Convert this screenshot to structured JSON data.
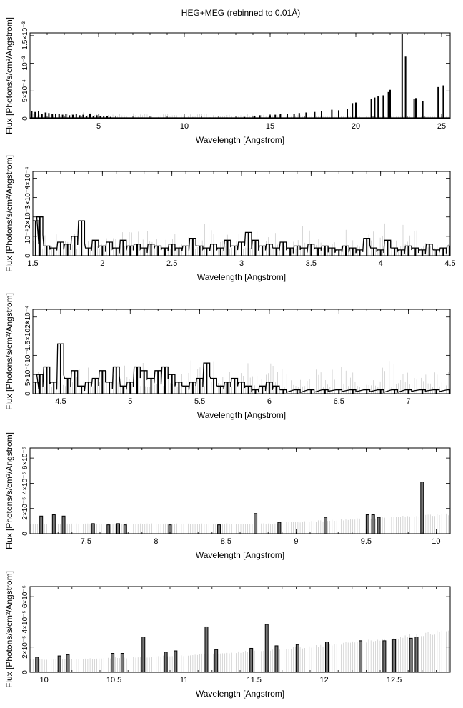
{
  "figure": {
    "title": "HEG+MEG (rebinned to 0.01Å)"
  },
  "chart_data": [
    {
      "type": "line",
      "title": "HEG+MEG (rebinned to 0.01Å)",
      "xlabel": "Wavelength [Angstrom]",
      "ylabel": "Flux [Photons/s/cm²/Angstrom]",
      "xlim": [
        1.0,
        25.5
      ],
      "ylim": [
        0,
        0.00155
      ],
      "xticks": [
        5,
        10,
        15,
        20,
        25
      ],
      "xtick_labels": [
        "5",
        "10",
        "15",
        "20",
        "25"
      ],
      "yticks": [
        0,
        0.0005,
        0.001,
        0.0015
      ],
      "ytick_labels": [
        "0",
        "5×10⁻⁴",
        "10⁻³",
        "1.5×10⁻³"
      ],
      "style": "spikes",
      "x": [
        1.1,
        1.3,
        1.5,
        1.7,
        1.9,
        2.1,
        2.3,
        2.5,
        2.7,
        2.9,
        3.1,
        3.3,
        3.5,
        3.7,
        3.9,
        4.1,
        4.3,
        4.5,
        4.7,
        4.9,
        5.1,
        5.3,
        5.5,
        5.7,
        6.5,
        7.5,
        8.5,
        9.5,
        10.5,
        11.5,
        12.5,
        13.5,
        14.1,
        14.4,
        15.0,
        15.3,
        15.6,
        16.0,
        16.4,
        16.7,
        17.1,
        17.6,
        18.0,
        18.6,
        19.0,
        19.5,
        19.8,
        20.0,
        20.9,
        21.1,
        21.3,
        21.6,
        21.9,
        22.0,
        22.7,
        22.9,
        23.4,
        23.5,
        23.9,
        24.8,
        25.1
      ],
      "y": [
        0.00014,
        0.00012,
        0.00013,
        9e-05,
        0.00011,
        0.0001,
        8e-05,
        9e-05,
        8e-05,
        7e-05,
        9e-05,
        6e-05,
        7e-05,
        8e-05,
        6e-05,
        7e-05,
        5e-05,
        9e-05,
        5e-05,
        6e-05,
        5e-05,
        4e-05,
        4e-05,
        3e-05,
        2e-05,
        2e-05,
        2e-05,
        2e-05,
        2e-05,
        2e-05,
        2e-05,
        3e-05,
        5e-05,
        6e-05,
        6e-05,
        7e-05,
        8e-05,
        9e-05,
        8e-05,
        0.0001,
        0.00011,
        0.00012,
        0.00014,
        0.00016,
        0.00015,
        0.00018,
        0.00028,
        0.00029,
        0.00035,
        0.00038,
        0.0004,
        0.00042,
        0.00048,
        0.00052,
        0.00153,
        0.00112,
        0.00035,
        0.00037,
        0.00032,
        0.00057,
        0.0006
      ]
    },
    {
      "type": "line",
      "xlabel": "Wavelength [Angstrom]",
      "ylabel": "Flux [Photons/s/cm²/Angstrom]",
      "xlim": [
        1.5,
        4.5
      ],
      "ylim": [
        0,
        0.000435
      ],
      "xticks": [
        1.5,
        2,
        2.5,
        3,
        3.5,
        4,
        4.5
      ],
      "xtick_labels": [
        "1.5",
        "2",
        "2.5",
        "3",
        "3.5",
        "4",
        "4.5"
      ],
      "yticks": [
        0,
        0.0001,
        0.0002,
        0.0003,
        0.0004
      ],
      "ytick_labels": [
        "0",
        "10⁻⁴",
        "2×10⁻⁴",
        "3×10⁻⁴",
        "4×10⁻⁴"
      ],
      "style": "histogram",
      "x": [
        1.52,
        1.55,
        1.6,
        1.65,
        1.7,
        1.75,
        1.8,
        1.85,
        1.9,
        1.95,
        2.0,
        2.05,
        2.1,
        2.15,
        2.2,
        2.25,
        2.3,
        2.35,
        2.4,
        2.45,
        2.5,
        2.55,
        2.6,
        2.65,
        2.7,
        2.75,
        2.8,
        2.85,
        2.9,
        2.95,
        3.0,
        3.05,
        3.1,
        3.15,
        3.2,
        3.25,
        3.3,
        3.35,
        3.4,
        3.45,
        3.5,
        3.55,
        3.6,
        3.65,
        3.7,
        3.75,
        3.8,
        3.85,
        3.9,
        3.95,
        4.0,
        4.05,
        4.1,
        4.15,
        4.2,
        4.25,
        4.3,
        4.35,
        4.4,
        4.45,
        4.5
      ],
      "y": [
        0.00018,
        0.0002,
        5e-05,
        4e-05,
        7e-05,
        6e-05,
        0.0001,
        0.00018,
        4e-05,
        8e-05,
        5e-05,
        7e-05,
        4e-05,
        8e-05,
        5e-05,
        6e-05,
        4e-05,
        6e-05,
        5e-05,
        4e-05,
        6e-05,
        4e-05,
        5e-05,
        9e-05,
        5e-05,
        4e-05,
        6e-05,
        4e-05,
        8e-05,
        5e-05,
        7e-05,
        0.00012,
        8e-05,
        5e-05,
        6e-05,
        4e-05,
        7e-05,
        4e-05,
        5e-05,
        4e-05,
        6e-05,
        4e-05,
        5e-05,
        4e-05,
        3e-05,
        5e-05,
        4e-05,
        3e-05,
        9e-05,
        4e-05,
        3e-05,
        8e-05,
        4e-05,
        3e-05,
        5e-05,
        4e-05,
        3e-05,
        6e-05,
        3e-05,
        4e-05,
        5e-05
      ]
    },
    {
      "type": "line",
      "xlabel": "Wavelength [Angstrom]",
      "ylabel": "Flux [Photons/s/cm²/Angstrom]",
      "xlim": [
        4.3,
        7.3
      ],
      "ylim": [
        0,
        0.00022
      ],
      "xticks": [
        4.5,
        5,
        5.5,
        6,
        6.5,
        7
      ],
      "xtick_labels": [
        "4.5",
        "5",
        "5.5",
        "6",
        "6.5",
        "7"
      ],
      "yticks": [
        0,
        5e-05,
        0.0001,
        0.00015,
        0.0002
      ],
      "ytick_labels": [
        "0",
        "5×10⁻⁵",
        "10⁻⁴",
        "1.5×10⁻⁴",
        "2×10⁻⁴"
      ],
      "style": "histogram",
      "x": [
        4.32,
        4.35,
        4.4,
        4.45,
        4.5,
        4.55,
        4.6,
        4.65,
        4.7,
        4.75,
        4.8,
        4.85,
        4.9,
        4.95,
        5.0,
        5.05,
        5.1,
        5.15,
        5.2,
        5.25,
        5.3,
        5.35,
        5.4,
        5.45,
        5.5,
        5.55,
        5.6,
        5.65,
        5.7,
        5.75,
        5.8,
        5.85,
        5.9,
        5.95,
        6.0,
        6.05,
        6.1,
        6.2,
        6.3,
        6.4,
        6.5,
        6.6,
        6.7,
        6.8,
        6.9,
        7.0,
        7.1,
        7.2,
        7.3
      ],
      "y": [
        3e-05,
        5e-05,
        7e-05,
        3e-05,
        0.00013,
        4e-05,
        6e-05,
        2e-05,
        3e-05,
        4e-05,
        6e-05,
        3e-05,
        7e-05,
        2e-05,
        3e-05,
        7e-05,
        6e-05,
        4e-05,
        6e-05,
        7e-05,
        5e-05,
        3e-05,
        2e-05,
        3e-05,
        4e-05,
        8e-05,
        4e-05,
        2e-05,
        3e-05,
        4e-05,
        3e-05,
        2e-05,
        1e-05,
        2e-05,
        3e-05,
        2e-05,
        1e-05,
        1e-05,
        1e-05,
        1e-05,
        1e-05,
        1e-05,
        1e-05,
        1e-05,
        1e-05,
        1e-05,
        1e-05,
        1e-05,
        1e-05
      ]
    },
    {
      "type": "line",
      "xlabel": "Wavelength [Angstrom]",
      "ylabel": "Flux [Photons/s/cm²/Angstrom]",
      "xlim": [
        7.1,
        10.1
      ],
      "ylim": [
        0,
        6.8e-05
      ],
      "xticks": [
        7.5,
        8,
        8.5,
        9,
        9.5,
        10
      ],
      "xtick_labels": [
        "7.5",
        "8",
        "8.5",
        "9",
        "9.5",
        "10"
      ],
      "yticks": [
        0,
        2e-05,
        4e-05,
        6e-05
      ],
      "ytick_labels": [
        "0",
        "2×10⁻⁵",
        "4×10⁻⁵",
        "6×10⁻⁵"
      ],
      "style": "sparse",
      "x": [
        7.18,
        7.27,
        7.34,
        7.55,
        7.66,
        7.73,
        7.78,
        8.1,
        8.45,
        8.71,
        8.88,
        9.21,
        9.51,
        9.55,
        9.59,
        9.9
      ],
      "y": [
        1.4e-05,
        1.5e-05,
        1.4e-05,
        8e-06,
        7e-06,
        8e-06,
        7e-06,
        7e-06,
        7e-06,
        1.6e-05,
        9e-06,
        1.3e-05,
        1.5e-05,
        1.5e-05,
        1.3e-05,
        4.1e-05
      ]
    },
    {
      "type": "line",
      "xlabel": "Wavelength [Angstrom]",
      "ylabel": "Flux [Photons/s/cm²/Angstrom]",
      "xlim": [
        9.9,
        12.9
      ],
      "ylim": [
        0,
        6.8e-05
      ],
      "xticks": [
        10,
        10.5,
        11,
        11.5,
        12,
        12.5
      ],
      "xtick_labels": [
        "10",
        "10.5",
        "11",
        "11.5",
        "12",
        "12.5"
      ],
      "yticks": [
        0,
        2e-05,
        4e-05,
        6e-05
      ],
      "ytick_labels": [
        "0",
        "2×10⁻⁵",
        "4×10⁻⁵",
        "6×10⁻⁵"
      ],
      "style": "sparse",
      "x": [
        9.95,
        10.11,
        10.17,
        10.49,
        10.56,
        10.71,
        10.87,
        10.94,
        11.16,
        11.23,
        11.48,
        11.59,
        11.66,
        11.81,
        12.02,
        12.26,
        12.43,
        12.5,
        12.62,
        12.66
      ],
      "y": [
        1.2e-05,
        1.3e-05,
        1.4e-05,
        1.5e-05,
        1.5e-05,
        2.8e-05,
        1.6e-05,
        1.7e-05,
        3.6e-05,
        1.8e-05,
        1.9e-05,
        3.8e-05,
        2.1e-05,
        2.2e-05,
        2.4e-05,
        2.5e-05,
        2.5e-05,
        2.6e-05,
        2.7e-05,
        2.8e-05
      ]
    }
  ]
}
